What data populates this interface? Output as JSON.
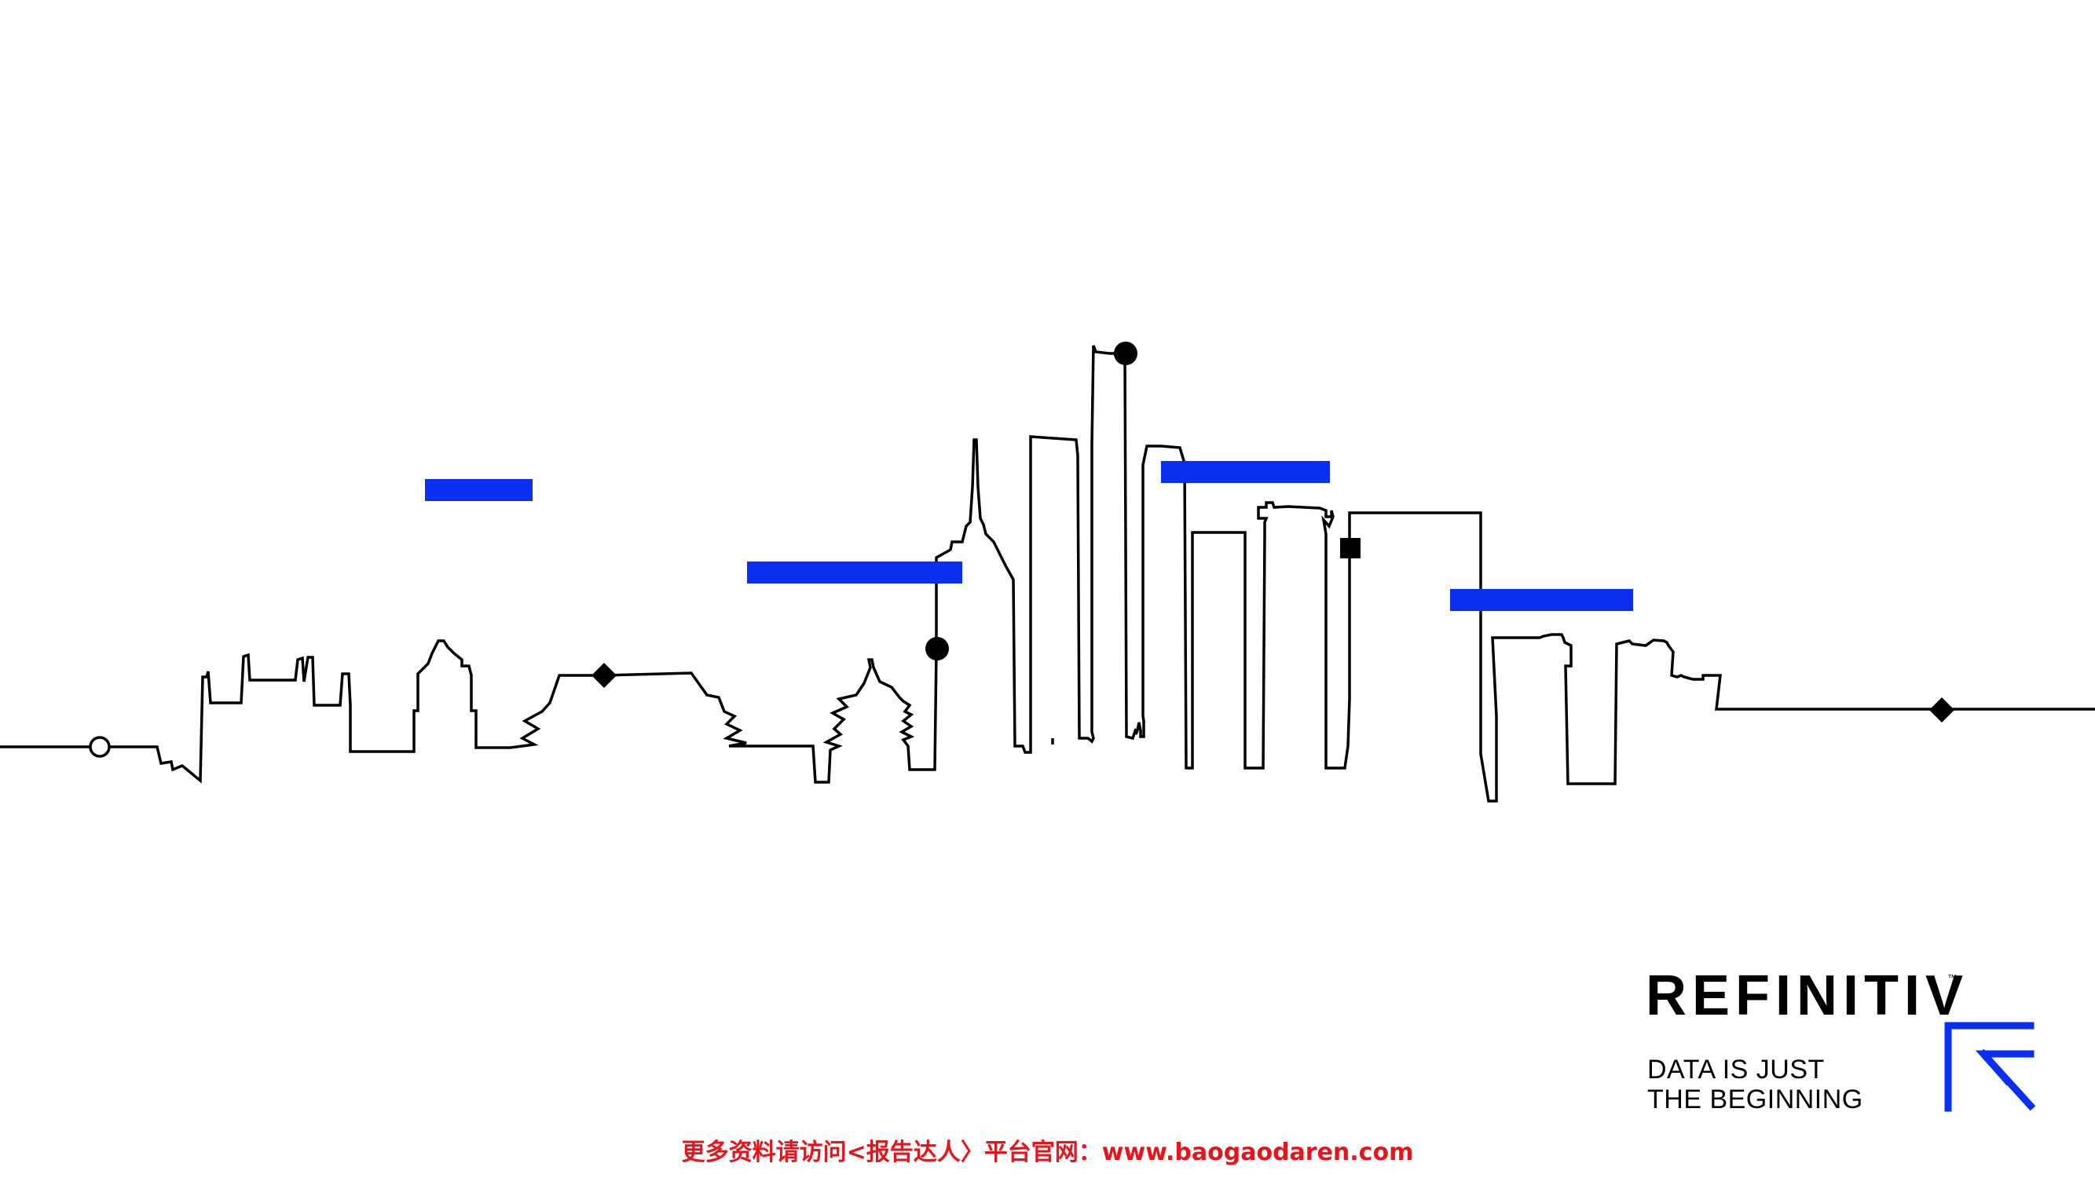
{
  "colors": {
    "background": "#ffffff",
    "line": "#000000",
    "accent": "#0a2ff0",
    "watermark": "#e8141b"
  },
  "skyline": {
    "markers": [
      "open-circle",
      "diamond",
      "circle",
      "circle",
      "square",
      "diamond"
    ]
  },
  "brand": {
    "name": "REFINITIV",
    "trademark": "™",
    "tagline_line1": "DATA IS JUST",
    "tagline_line2": "THE BEGINNING",
    "mark_icon": "refinitiv-r-mark-icon"
  },
  "footer": {
    "watermark_text": "更多资料请访问<报告达人〉平台官网：www.baogaodaren.com"
  }
}
